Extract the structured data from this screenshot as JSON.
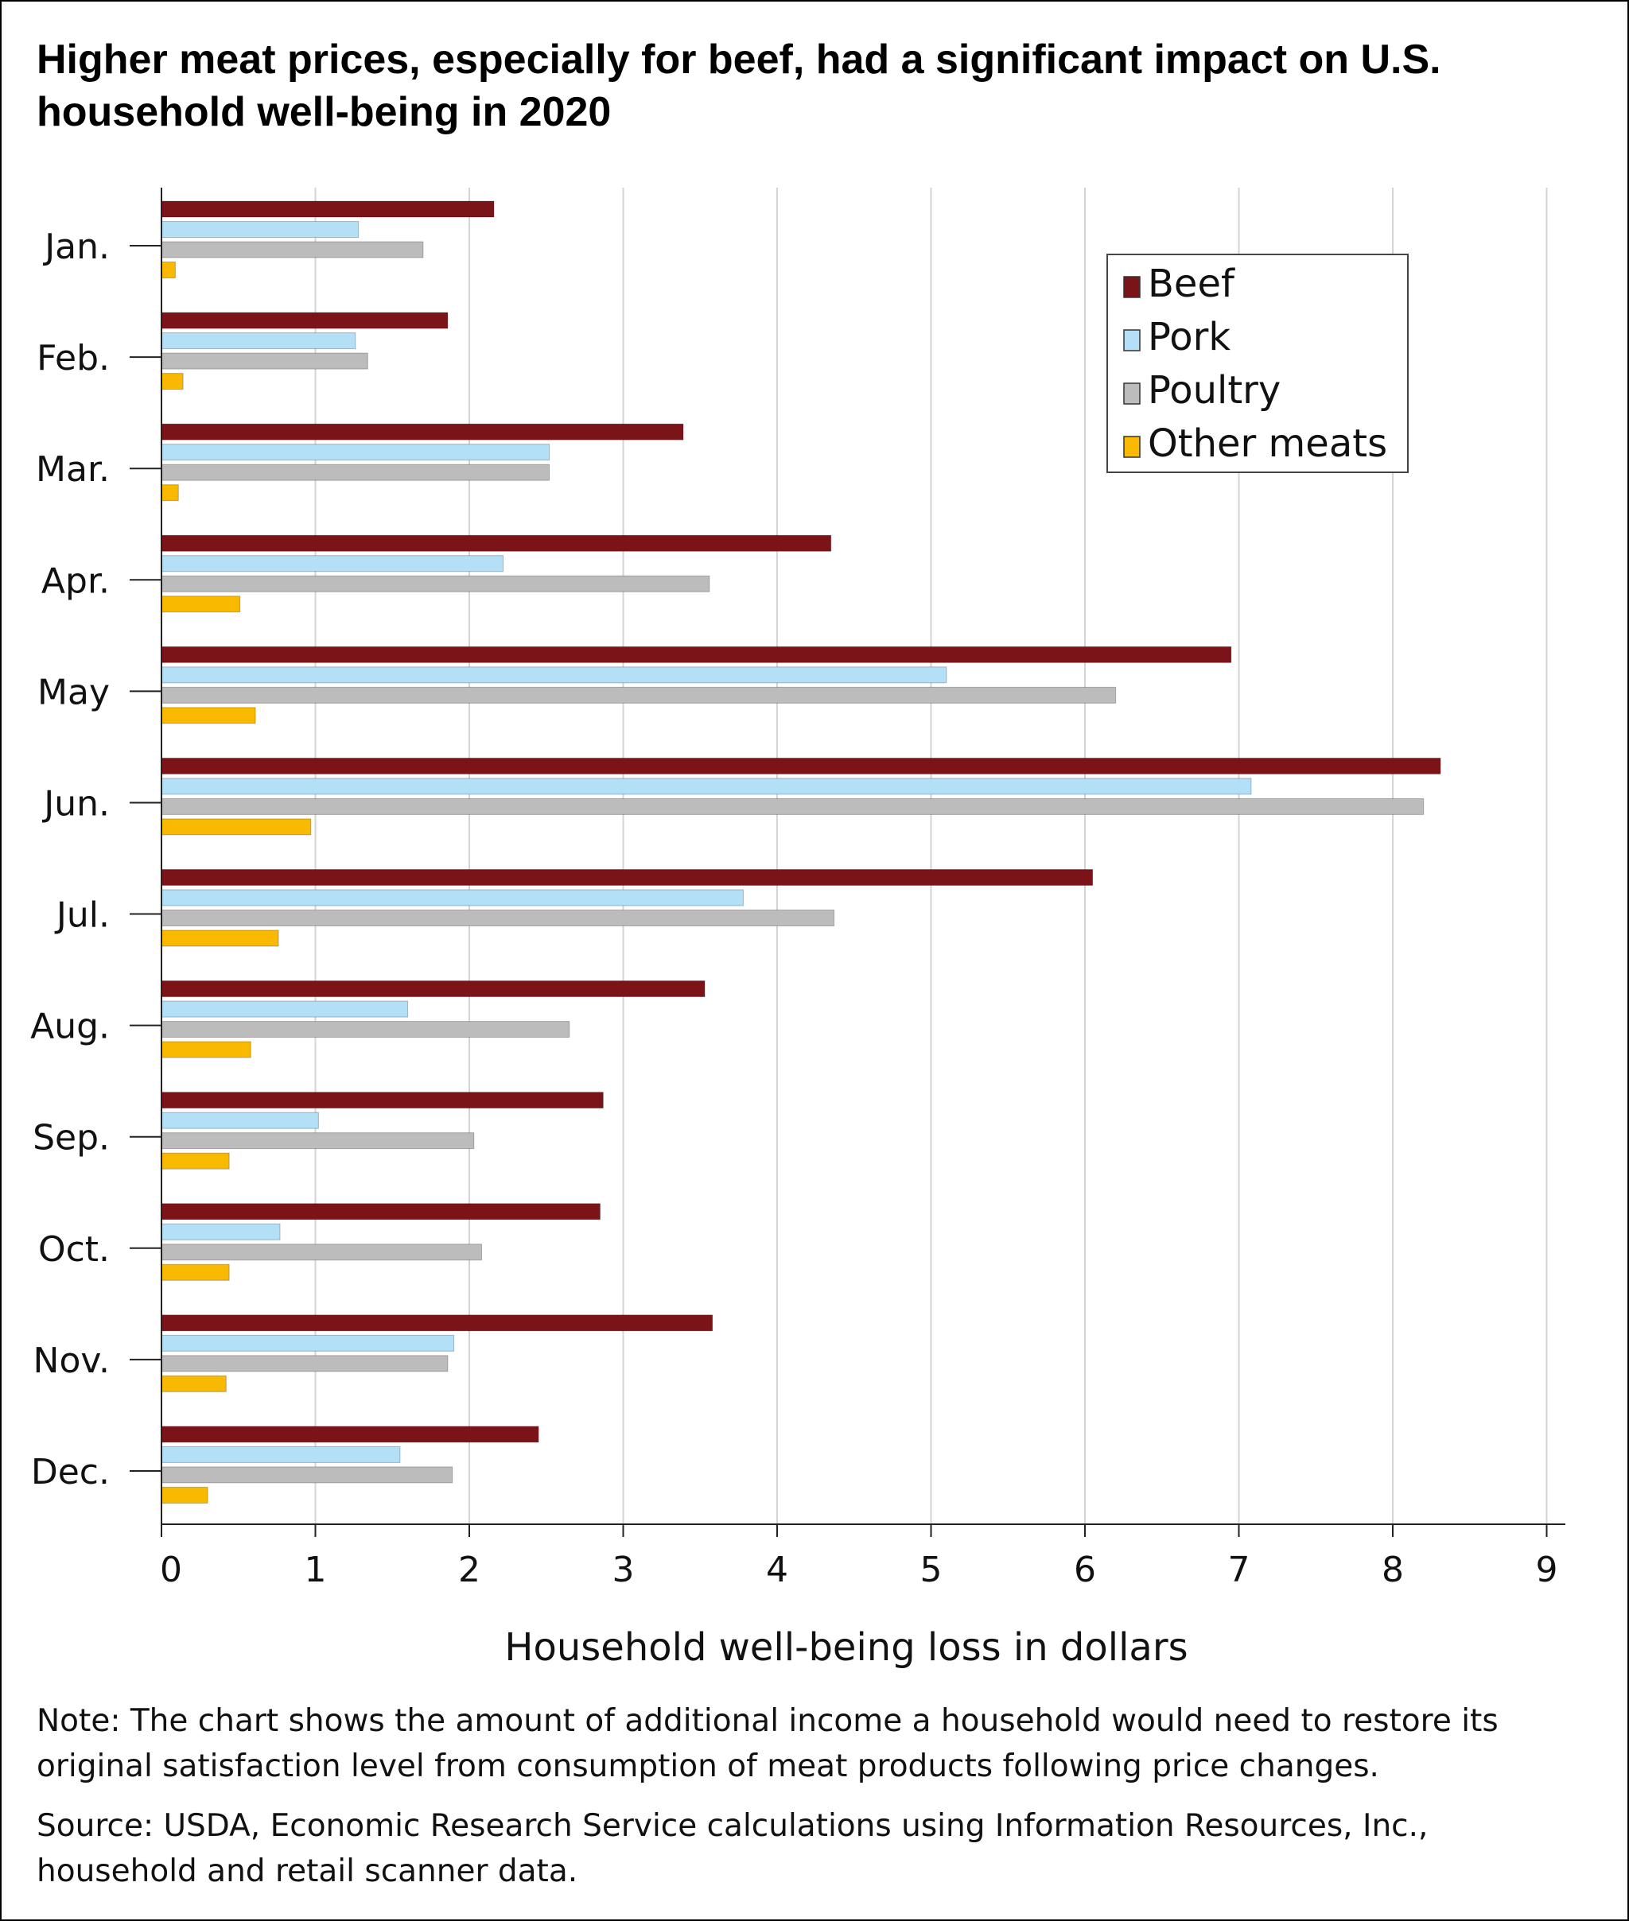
{
  "title": "Higher meat prices, especially for beef, had a significant impact on U.S. household well-being in 2020",
  "note": "Note: The chart shows the amount of additional income a household would need to restore its original satisfaction level from consumption of meat products following price changes.",
  "source": "Source: USDA, Economic Research Service calculations using Information Resources, Inc., household and retail scanner data.",
  "chart_data": {
    "type": "bar",
    "orientation": "horizontal",
    "categories": [
      "Jan.",
      "Feb.",
      "Mar.",
      "Apr.",
      "May",
      "Jun.",
      "Jul.",
      "Aug.",
      "Sep.",
      "Oct.",
      "Nov.",
      "Dec."
    ],
    "series": [
      {
        "name": "Beef",
        "color": "#7a1418",
        "values": [
          2.16,
          1.86,
          3.39,
          4.35,
          6.95,
          8.31,
          6.05,
          3.53,
          2.87,
          2.85,
          3.58,
          2.45
        ]
      },
      {
        "name": "Pork",
        "color": "#b3e0f7",
        "values": [
          1.28,
          1.26,
          2.52,
          2.22,
          5.1,
          7.08,
          3.78,
          1.6,
          1.02,
          0.77,
          1.9,
          1.55
        ]
      },
      {
        "name": "Poultry",
        "color": "#bcbcbc",
        "values": [
          1.7,
          1.34,
          2.52,
          3.56,
          6.2,
          8.2,
          4.37,
          2.65,
          2.03,
          2.08,
          1.86,
          1.89
        ]
      },
      {
        "name": "Other meats",
        "color": "#f8b900",
        "values": [
          0.09,
          0.14,
          0.11,
          0.51,
          0.61,
          0.97,
          0.76,
          0.58,
          0.44,
          0.44,
          0.42,
          0.3
        ]
      }
    ],
    "xlabel": "Household well-being loss in dollars",
    "xlim": [
      0,
      9
    ],
    "xticks": [
      0,
      1,
      2,
      3,
      4,
      5,
      6,
      7,
      8,
      9
    ],
    "grid": "vertical",
    "legend": "top-right"
  }
}
